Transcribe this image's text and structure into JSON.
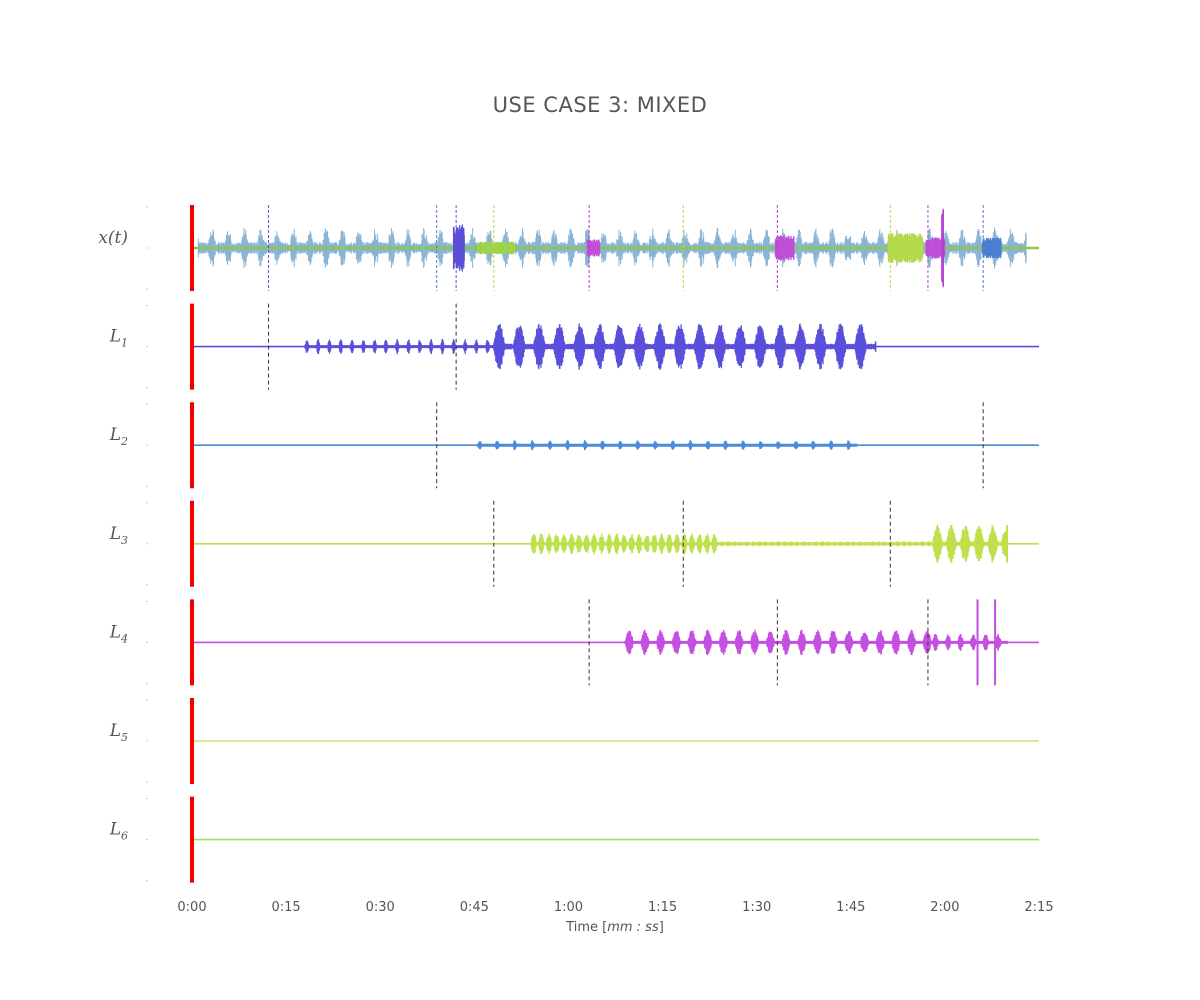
{
  "chart_data": {
    "type": "line",
    "title": "USE CASE 3: MIXED",
    "xlabel_prefix": "Time [",
    "xlabel_math": "mm : ss",
    "xlabel_suffix": "]",
    "x_unit": "seconds",
    "xlim": [
      0,
      135
    ],
    "x_ticks": [
      {
        "value": 0,
        "label": "0:00"
      },
      {
        "value": 15,
        "label": "0:15"
      },
      {
        "value": 30,
        "label": "0:30"
      },
      {
        "value": 45,
        "label": "0:45"
      },
      {
        "value": 60,
        "label": "1:00"
      },
      {
        "value": 75,
        "label": "1:15"
      },
      {
        "value": 90,
        "label": "1:30"
      },
      {
        "value": 105,
        "label": "1:45"
      },
      {
        "value": 120,
        "label": "2:00"
      },
      {
        "value": 135,
        "label": "2:15"
      }
    ],
    "rows": [
      {
        "label": "x(t)",
        "sub": "",
        "kind": "mix",
        "color": "#8ab4d6",
        "markers": [
          {
            "t": 12.2,
            "color": "#7b3fd0"
          },
          {
            "t": 39.0,
            "color": "#4a7fd0"
          },
          {
            "t": 42.1,
            "color": "#7b3fd0"
          },
          {
            "t": 48.1,
            "color": "#b4d94a"
          },
          {
            "t": 63.3,
            "color": "#b43fd0"
          },
          {
            "t": 78.3,
            "color": "#b4d94a"
          },
          {
            "t": 93.3,
            "color": "#b43fd0"
          },
          {
            "t": 111.3,
            "color": "#b4d94a"
          },
          {
            "t": 117.3,
            "color": "#b43fd0"
          },
          {
            "t": 126.1,
            "color": "#4a7fd0"
          }
        ],
        "bursts": [
          {
            "start": 41.7,
            "end": 43.4,
            "amp": 0.55,
            "color": "#5b4fd8"
          },
          {
            "start": 45.5,
            "end": 51.5,
            "amp": 0.15,
            "color": "#9fd34a"
          },
          {
            "start": 63.0,
            "end": 65.0,
            "amp": 0.2,
            "color": "#c04fd8"
          },
          {
            "start": 93.0,
            "end": 96.0,
            "amp": 0.3,
            "color": "#c04fd8"
          },
          {
            "start": 111.0,
            "end": 116.5,
            "amp": 0.35,
            "color": "#b4d94a"
          },
          {
            "start": 117.0,
            "end": 120.0,
            "amp": 0.25,
            "color": "#c04fd8"
          },
          {
            "start": 119.5,
            "end": 119.8,
            "amp": 1.0,
            "color": "#b43fd0"
          },
          {
            "start": 126.0,
            "end": 129.0,
            "amp": 0.25,
            "color": "#4a7fd0"
          }
        ]
      },
      {
        "label": "L",
        "sub": "1",
        "kind": "layer",
        "color": "#5a4fdc",
        "markers": [
          12.2,
          42.1
        ],
        "segments": [
          {
            "start": 18.0,
            "end": 48.0,
            "amp": 0.18,
            "period": 1.8,
            "on": 0.35
          },
          {
            "start": 48.0,
            "end": 109.0,
            "amp": 0.55,
            "period": 3.2,
            "on": 0.6
          }
        ]
      },
      {
        "label": "L",
        "sub": "2",
        "kind": "layer",
        "color": "#4a8bdc",
        "markers": [
          39.0,
          126.1
        ],
        "segments": [
          {
            "start": 45.5,
            "end": 106.0,
            "amp": 0.12,
            "period": 2.8,
            "on": 0.25
          }
        ]
      },
      {
        "label": "L",
        "sub": "3",
        "kind": "layer",
        "color": "#bfe04a",
        "markers": [
          48.1,
          78.3,
          111.3
        ],
        "segments": [
          {
            "start": 54.0,
            "end": 84.0,
            "amp": 0.25,
            "period": 1.2,
            "on": 0.8
          },
          {
            "start": 84.0,
            "end": 118.0,
            "amp": 0.06,
            "period": 1.0,
            "on": 0.9
          },
          {
            "start": 118.0,
            "end": 130.0,
            "amp": 0.45,
            "period": 2.2,
            "on": 0.75
          }
        ]
      },
      {
        "label": "L",
        "sub": "4",
        "kind": "layer",
        "color": "#c44fe0",
        "markers": [
          63.3,
          93.3,
          117.3
        ],
        "segments": [
          {
            "start": 69.0,
            "end": 118.0,
            "amp": 0.3,
            "period": 2.5,
            "on": 0.55
          },
          {
            "start": 118.0,
            "end": 130.0,
            "amp": 0.2,
            "period": 2.0,
            "on": 0.5
          }
        ],
        "spikes": [
          {
            "t": 125.2,
            "amp": 1.0
          },
          {
            "t": 128.0,
            "amp": 1.0
          }
        ]
      },
      {
        "label": "L",
        "sub": "5",
        "kind": "layer",
        "color": "#c4e37a",
        "markers": [],
        "segments": []
      },
      {
        "label": "L",
        "sub": "6",
        "kind": "layer",
        "color": "#a9dc6a",
        "markers": [],
        "segments": []
      }
    ]
  }
}
